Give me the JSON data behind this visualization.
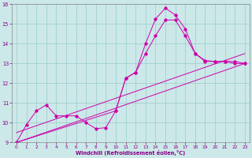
{
  "xlabel": "Windchill (Refroidissement éolien,°C)",
  "xlim": [
    -0.5,
    23.5
  ],
  "ylim": [
    9,
    16
  ],
  "xticks": [
    0,
    1,
    2,
    3,
    4,
    5,
    6,
    7,
    8,
    9,
    10,
    11,
    12,
    13,
    14,
    15,
    16,
    17,
    18,
    19,
    20,
    21,
    22,
    23
  ],
  "yticks": [
    9,
    10,
    11,
    12,
    13,
    14,
    15,
    16
  ],
  "bg_color": "#cce8e8",
  "line_color": "#cc00aa",
  "grid_color": "#99cccc",
  "series": [
    {
      "x": [
        0,
        1,
        2,
        3,
        4,
        5,
        6,
        7,
        8,
        9,
        10,
        11,
        12,
        13,
        14,
        15,
        16,
        17,
        18,
        19,
        20,
        21,
        22,
        23
      ],
      "y": [
        9.0,
        9.9,
        10.6,
        10.9,
        10.35,
        10.35,
        10.35,
        10.0,
        9.7,
        9.75,
        10.6,
        12.25,
        12.55,
        14.0,
        15.25,
        15.8,
        15.45,
        14.75,
        13.5,
        13.15,
        13.1,
        13.1,
        13.1,
        13.0
      ],
      "marker": true
    },
    {
      "x": [
        0,
        10,
        11,
        12,
        13,
        14,
        15,
        16,
        17,
        18,
        19,
        20,
        21,
        22,
        23
      ],
      "y": [
        9.0,
        10.6,
        12.25,
        12.55,
        13.5,
        14.4,
        15.2,
        15.2,
        14.4,
        13.5,
        13.1,
        13.1,
        13.1,
        13.0,
        13.0
      ],
      "marker": true
    },
    {
      "x": [
        0,
        23
      ],
      "y": [
        9.0,
        13.0
      ],
      "marker": false
    },
    {
      "x": [
        0,
        23
      ],
      "y": [
        9.5,
        13.5
      ],
      "marker": false
    }
  ]
}
